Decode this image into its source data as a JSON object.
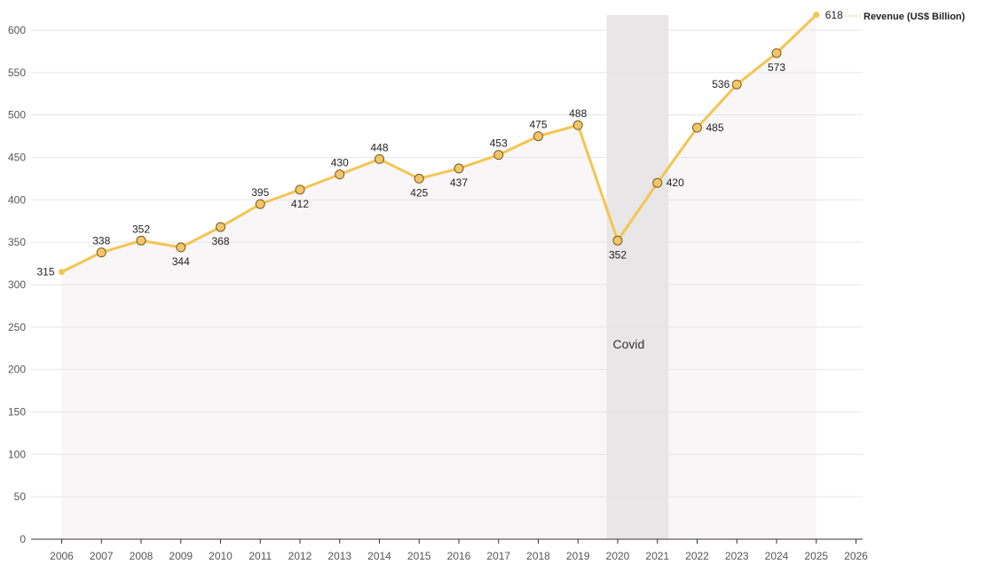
{
  "chart_data": {
    "type": "line",
    "x": [
      "2006",
      "2007",
      "2008",
      "2009",
      "2010",
      "2011",
      "2012",
      "2013",
      "2014",
      "2015",
      "2016",
      "2017",
      "2018",
      "2019",
      "2020",
      "2021",
      "2022",
      "2023",
      "2024",
      "2025"
    ],
    "x_ticks": [
      "2006",
      "2007",
      "2008",
      "2009",
      "2010",
      "2011",
      "2012",
      "2013",
      "2014",
      "2015",
      "2016",
      "2017",
      "2018",
      "2019",
      "2020",
      "2021",
      "2022",
      "2023",
      "2024",
      "2025",
      "2026"
    ],
    "series": [
      {
        "name": "Revenue (US$ Billion)",
        "values": [
          315,
          338,
          352,
          344,
          368,
          395,
          412,
          430,
          448,
          425,
          437,
          453,
          475,
          488,
          352,
          420,
          485,
          536,
          573,
          618
        ],
        "label_positions": [
          "left",
          "above",
          "above",
          "below",
          "below",
          "above",
          "below",
          "above",
          "above",
          "below",
          "below",
          "above",
          "above",
          "above",
          "below",
          "right",
          "right",
          "left",
          "below",
          "right"
        ]
      }
    ],
    "ylim": [
      0,
      600
    ],
    "y_ticks": [
      "0",
      "50",
      "100",
      "150",
      "200",
      "250",
      "300",
      "350",
      "400",
      "450",
      "500",
      "550",
      "600"
    ],
    "grid": true,
    "legend": "top-right",
    "annotations": [
      {
        "text": "Covid",
        "band_start": "2020",
        "band_end": "2021"
      }
    ],
    "title": "",
    "xlabel": "",
    "ylabel": "",
    "colors": {
      "line": "#f5c451",
      "marker_fill": "#f1c66a",
      "marker_stroke": "#7a5a1a",
      "area": "#f8f6f7",
      "band": "#e8e6e7",
      "grid": "#e6e6e6"
    }
  }
}
